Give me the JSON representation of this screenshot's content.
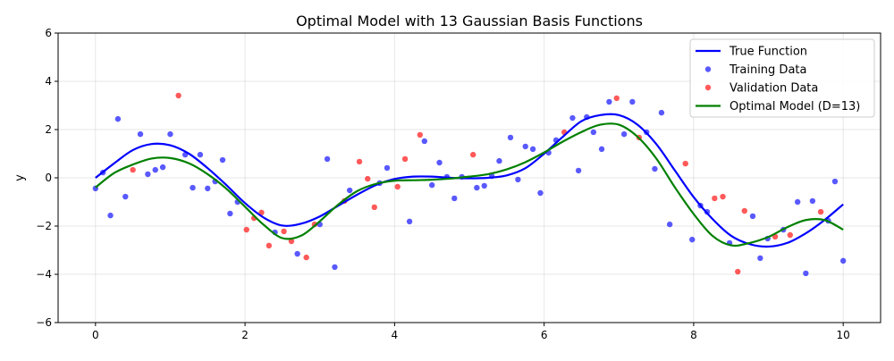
{
  "chart_data": {
    "type": "scatter",
    "title": "Optimal Model with 13 Gaussian Basis Functions",
    "xlabel": "",
    "ylabel": "y",
    "xlim": [
      -0.5,
      10.5
    ],
    "ylim": [
      -6,
      6
    ],
    "xticks": [
      0,
      2,
      4,
      6,
      8,
      10
    ],
    "yticks": [
      -6,
      -4,
      -2,
      0,
      2,
      4,
      6
    ],
    "grid": true,
    "legend_position": "top-right",
    "colors": {
      "true": "#0000ff",
      "training": "#0000ff",
      "validation": "#ff0000",
      "model": "#008000"
    },
    "series": [
      {
        "name": "True Function",
        "kind": "line",
        "x": [
          0,
          0.25,
          0.5,
          0.75,
          1,
          1.25,
          1.5,
          1.75,
          2,
          2.25,
          2.5,
          2.75,
          3,
          3.25,
          3.5,
          3.75,
          4,
          4.25,
          4.5,
          4.75,
          5,
          5.25,
          5.5,
          5.75,
          6,
          6.25,
          6.5,
          6.75,
          7,
          7.25,
          7.5,
          7.75,
          8,
          8.25,
          8.5,
          8.75,
          9,
          9.25,
          9.5,
          9.75,
          10
        ],
        "y": [
          0,
          0.6,
          1.15,
          1.4,
          1.35,
          1.0,
          0.4,
          -0.3,
          -1.05,
          -1.65,
          -1.98,
          -1.9,
          -1.6,
          -1.15,
          -0.7,
          -0.3,
          -0.05,
          0.05,
          0.05,
          0.0,
          -0.02,
          0.0,
          0.1,
          0.4,
          1.0,
          1.7,
          2.35,
          2.6,
          2.6,
          2.2,
          1.4,
          0.3,
          -0.8,
          -1.7,
          -2.4,
          -2.75,
          -2.85,
          -2.7,
          -2.3,
          -1.75,
          -1.1
        ]
      },
      {
        "name": "Training Data",
        "kind": "points",
        "x": [
          0,
          0.1,
          0.2,
          0.3,
          0.4,
          0.6,
          0.7,
          0.8,
          0.9,
          1.0,
          1.2,
          1.3,
          1.4,
          1.5,
          1.6,
          1.7,
          1.8,
          1.9,
          2.4,
          2.7,
          3.0,
          3.1,
          3.2,
          3.4,
          3.8,
          3.9,
          4.2,
          4.4,
          4.5,
          4.6,
          4.7,
          4.8,
          4.9,
          5.1,
          5.2,
          5.3,
          5.4,
          5.55,
          5.65,
          5.75,
          5.85,
          5.95,
          6.06,
          6.16,
          6.38,
          6.46,
          6.57,
          6.66,
          6.77,
          6.87,
          7.07,
          7.18,
          7.37,
          7.48,
          7.57,
          7.68,
          7.98,
          8.09,
          8.18,
          8.48,
          8.79,
          8.89,
          8.99,
          9.2,
          9.39,
          9.5,
          9.59,
          9.8,
          9.89,
          10.0
        ],
        "y": [
          -0.44,
          0.22,
          -1.56,
          2.44,
          -0.78,
          1.81,
          0.15,
          0.33,
          0.44,
          1.81,
          0.96,
          -0.41,
          0.96,
          -0.44,
          -0.15,
          0.74,
          -1.48,
          -1.0,
          -2.26,
          -3.15,
          -1.93,
          0.78,
          -3.7,
          -0.52,
          -0.22,
          0.41,
          -1.81,
          1.52,
          -0.3,
          0.63,
          0.04,
          -0.85,
          0.04,
          -0.41,
          -0.33,
          0.07,
          0.7,
          1.67,
          -0.07,
          1.3,
          1.19,
          -0.63,
          1.04,
          1.56,
          2.48,
          0.3,
          2.52,
          1.89,
          1.19,
          3.15,
          1.81,
          3.15,
          1.89,
          0.37,
          2.7,
          -1.93,
          -2.56,
          -1.15,
          -1.41,
          -2.7,
          -1.59,
          -3.33,
          -2.52,
          -2.15,
          -1.0,
          -3.96,
          -0.96,
          -1.78,
          -0.15,
          -3.44
        ]
      },
      {
        "name": "Validation Data",
        "kind": "points",
        "x": [
          0.5,
          1.11,
          2.02,
          2.12,
          2.22,
          2.32,
          2.52,
          2.62,
          2.82,
          2.93,
          3.33,
          3.53,
          3.64,
          3.73,
          4.04,
          4.14,
          4.34,
          5.05,
          6.27,
          6.97,
          7.27,
          7.89,
          8.28,
          8.39,
          8.59,
          8.68,
          9.09,
          9.29,
          9.7
        ],
        "y": [
          0.33,
          3.41,
          -2.15,
          -1.67,
          -1.44,
          -2.81,
          -2.22,
          -2.63,
          -3.3,
          -1.93,
          -0.96,
          0.67,
          -0.04,
          -1.22,
          -0.37,
          0.78,
          1.78,
          0.96,
          1.89,
          3.3,
          1.67,
          0.59,
          -0.85,
          -0.78,
          -3.89,
          -1.37,
          -2.44,
          -2.37,
          -1.41
        ]
      },
      {
        "name": "Optimal Model (D=13)",
        "kind": "line",
        "x": [
          0,
          0.25,
          0.5,
          0.75,
          1,
          1.25,
          1.5,
          1.75,
          2,
          2.25,
          2.5,
          2.75,
          3,
          3.25,
          3.5,
          3.75,
          4,
          4.25,
          4.5,
          4.75,
          5,
          5.25,
          5.5,
          5.75,
          6,
          6.25,
          6.5,
          6.75,
          7,
          7.25,
          7.5,
          7.75,
          8,
          8.25,
          8.5,
          8.75,
          9,
          9.25,
          9.5,
          9.75,
          10
        ],
        "y": [
          -0.4,
          0.2,
          0.55,
          0.8,
          0.82,
          0.6,
          0.15,
          -0.45,
          -1.2,
          -1.95,
          -2.5,
          -2.4,
          -1.8,
          -1.1,
          -0.55,
          -0.25,
          -0.12,
          -0.1,
          -0.08,
          -0.03,
          0.05,
          0.15,
          0.35,
          0.65,
          1.05,
          1.5,
          1.9,
          2.2,
          2.2,
          1.7,
          0.8,
          -0.4,
          -1.5,
          -2.4,
          -2.8,
          -2.7,
          -2.45,
          -2.05,
          -1.75,
          -1.75,
          -2.15
        ]
      }
    ]
  }
}
